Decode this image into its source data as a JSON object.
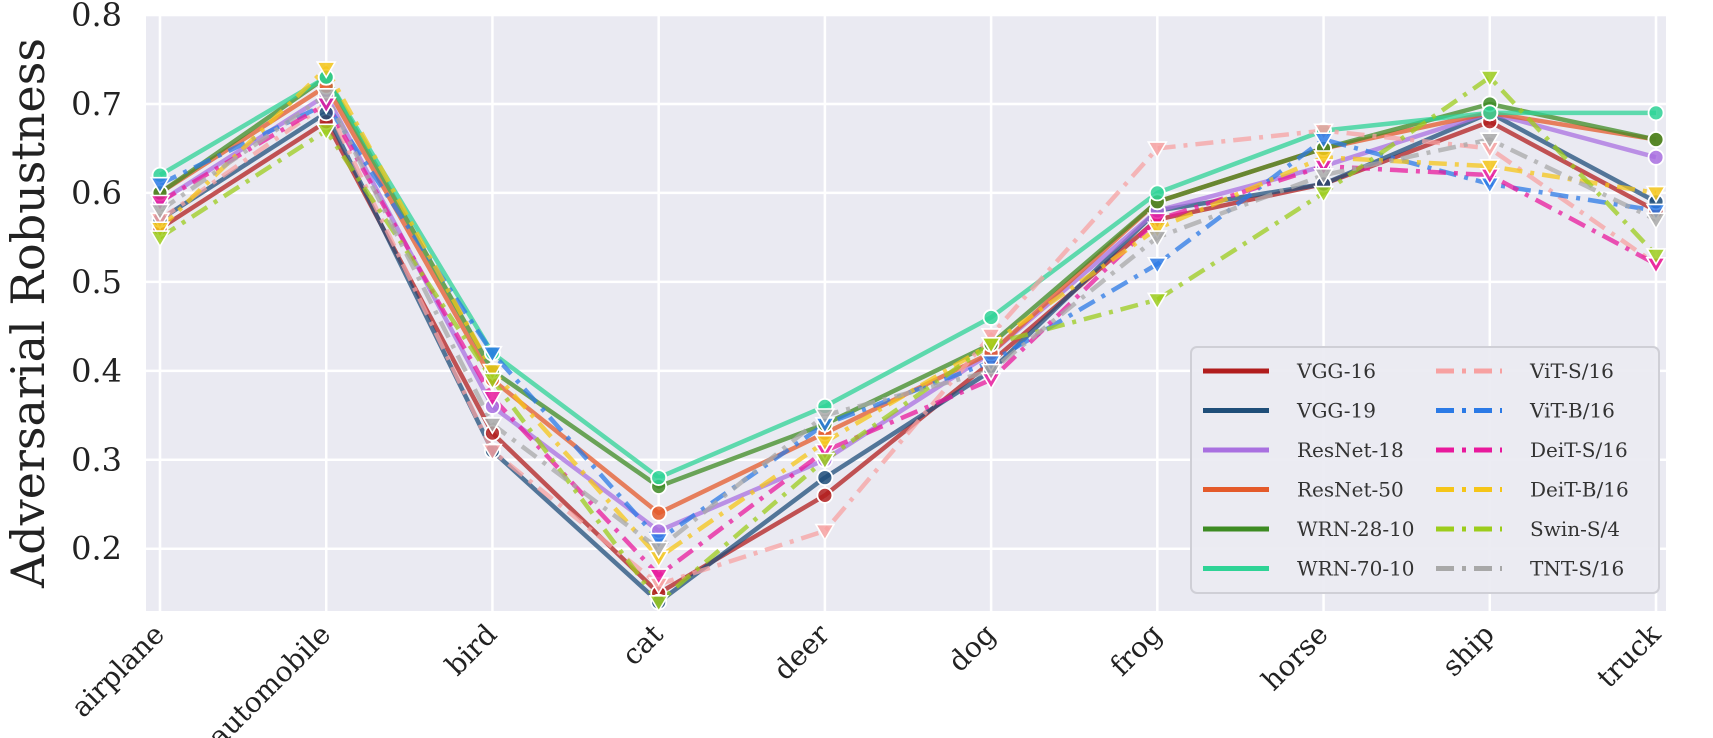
{
  "chart_data": {
    "type": "line",
    "ylabel": "Adversarial Robustness",
    "xlabel": "",
    "ylim": [
      0.13,
      0.8
    ],
    "yticks": [
      "0.2",
      "0.3",
      "0.4",
      "0.5",
      "0.6",
      "0.7",
      "0.8"
    ],
    "grid": true,
    "legend_position": "bottom-right",
    "categories": [
      "airplane",
      "automobile",
      "bird",
      "cat",
      "deer",
      "dog",
      "frog",
      "horse",
      "ship",
      "truck"
    ],
    "series": [
      {
        "name": "VGG-16",
        "color": "#b11d1d",
        "dash": "solid",
        "marker": "circle",
        "values": [
          0.56,
          0.68,
          0.33,
          0.15,
          0.26,
          0.41,
          0.57,
          0.61,
          0.68,
          0.58
        ]
      },
      {
        "name": "VGG-19",
        "color": "#1f4e79",
        "dash": "solid",
        "marker": "circle",
        "values": [
          0.57,
          0.69,
          0.31,
          0.14,
          0.28,
          0.4,
          0.58,
          0.61,
          0.69,
          0.59
        ]
      },
      {
        "name": "ResNet-18",
        "color": "#a970e0",
        "dash": "solid",
        "marker": "circle",
        "values": [
          0.59,
          0.71,
          0.36,
          0.22,
          0.3,
          0.42,
          0.58,
          0.63,
          0.69,
          0.64
        ]
      },
      {
        "name": "ResNet-50",
        "color": "#e45a2a",
        "dash": "solid",
        "marker": "circle",
        "values": [
          0.6,
          0.72,
          0.39,
          0.24,
          0.33,
          0.42,
          0.59,
          0.65,
          0.69,
          0.66
        ]
      },
      {
        "name": "WRN-28-10",
        "color": "#3d8b23",
        "dash": "solid",
        "marker": "circle",
        "values": [
          0.6,
          0.73,
          0.4,
          0.27,
          0.34,
          0.43,
          0.59,
          0.65,
          0.7,
          0.66
        ]
      },
      {
        "name": "WRN-70-10",
        "color": "#2ed396",
        "dash": "solid",
        "marker": "circle",
        "values": [
          0.62,
          0.73,
          0.42,
          0.28,
          0.36,
          0.46,
          0.6,
          0.67,
          0.69,
          0.69
        ]
      },
      {
        "name": "ViT-S/16",
        "color": "#f7a1a1",
        "dash": "dashdot",
        "marker": "triangle",
        "values": [
          0.57,
          0.7,
          0.31,
          0.16,
          0.22,
          0.44,
          0.65,
          0.67,
          0.65,
          0.52
        ]
      },
      {
        "name": "ViT-B/16",
        "color": "#2b7ae6",
        "dash": "dashdot",
        "marker": "triangle",
        "values": [
          0.61,
          0.7,
          0.42,
          0.21,
          0.34,
          0.41,
          0.52,
          0.66,
          0.61,
          0.58
        ]
      },
      {
        "name": "DeiT-S/16",
        "color": "#e8199c",
        "dash": "dashdot",
        "marker": "triangle",
        "values": [
          0.59,
          0.7,
          0.37,
          0.17,
          0.31,
          0.39,
          0.57,
          0.63,
          0.62,
          0.52
        ]
      },
      {
        "name": "DeiT-B/16",
        "color": "#f5c518",
        "dash": "dashdot",
        "marker": "triangle",
        "values": [
          0.56,
          0.74,
          0.4,
          0.19,
          0.32,
          0.43,
          0.56,
          0.64,
          0.63,
          0.6
        ]
      },
      {
        "name": "Swin-S/4",
        "color": "#9ccc1c",
        "dash": "dashdot",
        "marker": "triangle",
        "values": [
          0.55,
          0.67,
          0.39,
          0.14,
          0.3,
          0.43,
          0.48,
          0.6,
          0.73,
          0.53
        ]
      },
      {
        "name": "TNT-S/16",
        "color": "#a8a8a8",
        "dash": "dashdot",
        "marker": "triangle",
        "values": [
          0.58,
          0.71,
          0.34,
          0.2,
          0.35,
          0.4,
          0.55,
          0.62,
          0.66,
          0.57
        ]
      }
    ]
  }
}
